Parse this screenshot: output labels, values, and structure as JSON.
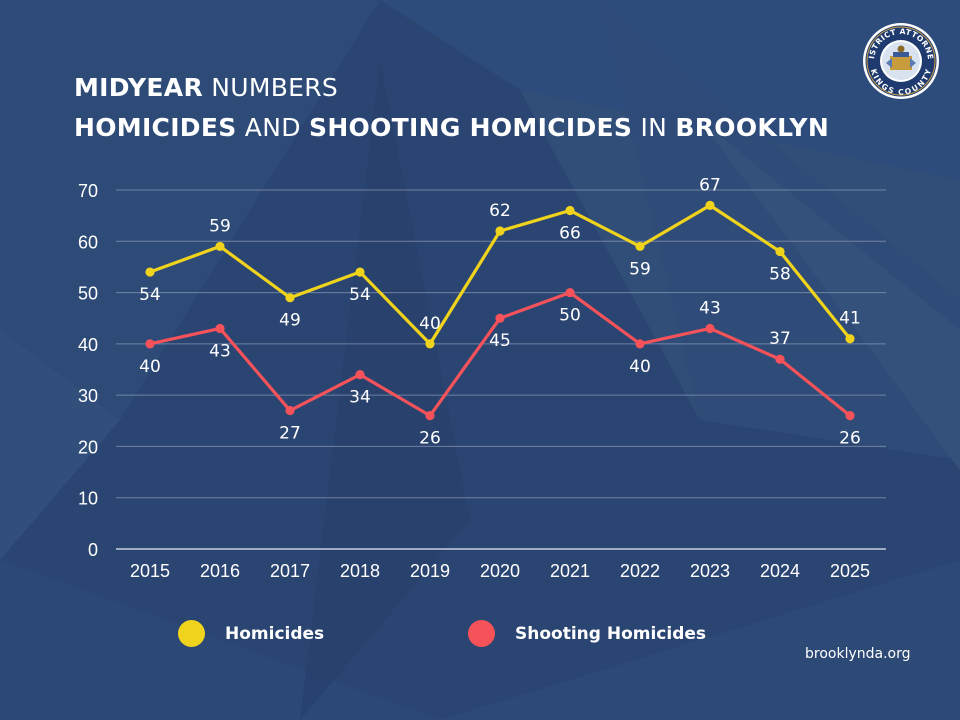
{
  "header": {
    "title_line1_bold": "MIDYEAR",
    "title_line1_rest": "NUMBERS",
    "title_line2_parts": [
      {
        "text": "HOMICIDES",
        "bold": true
      },
      {
        "text": "AND",
        "bold": false
      },
      {
        "text": "SHOOTING HOMICIDES",
        "bold": true
      },
      {
        "text": "IN",
        "bold": false
      },
      {
        "text": "BROOKLYN",
        "bold": true
      }
    ]
  },
  "seal": {
    "text_top": "DISTRICT ATTORNEY",
    "text_bottom": "KINGS COUNTY",
    "icon": "district-attorney-seal-icon"
  },
  "chart_data": {
    "type": "line",
    "x": [
      "2015",
      "2016",
      "2017",
      "2018",
      "2019",
      "2020",
      "2021",
      "2022",
      "2023",
      "2024",
      "2025"
    ],
    "ylim": [
      0,
      70
    ],
    "yticks": [
      0,
      10,
      20,
      30,
      40,
      50,
      60,
      70
    ],
    "grid": true,
    "legend_position": "bottom",
    "series": [
      {
        "name": "Homicides",
        "color": "#f0d31c",
        "values": [
          54,
          59,
          49,
          54,
          40,
          62,
          66,
          59,
          67,
          58,
          41
        ]
      },
      {
        "name": "Shooting Homicides",
        "color": "#f5525a",
        "values": [
          40,
          43,
          27,
          34,
          26,
          45,
          50,
          40,
          43,
          37,
          26
        ]
      }
    ]
  },
  "footer": {
    "url": "brooklynda.org"
  }
}
